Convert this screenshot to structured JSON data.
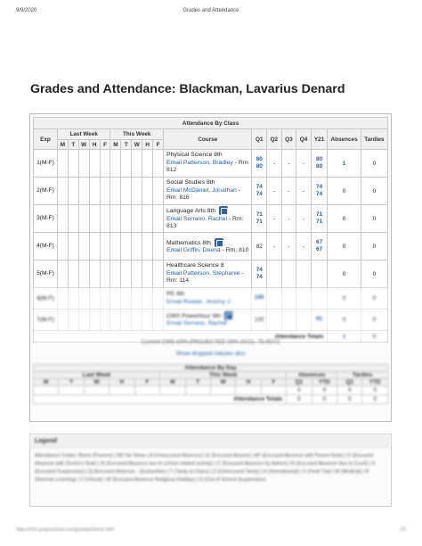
{
  "print_header": {
    "date": "9/9/2020",
    "title": "Grades and Attendance"
  },
  "page_title": "Grades and Attendance: Blackman, Lavarius Denard",
  "attendance_by_class": {
    "caption": "Attendance By Class",
    "headers": {
      "exp": "Exp",
      "last_week": "Last Week",
      "this_week": "This Week",
      "days": [
        "M",
        "T",
        "W",
        "H",
        "F"
      ],
      "course": "Course",
      "q1": "Q1",
      "q2": "Q2",
      "q3": "Q3",
      "q4": "Q4",
      "y21": "Y21",
      "absences": "Absences",
      "tardies": "Tardies"
    },
    "rows": [
      {
        "exp": "1(M-F)",
        "course": "Physical Science 8th",
        "teacher": "Email Patterson, Bradley",
        "room": " - Rm: 812",
        "q1": [
          "80",
          "80"
        ],
        "q2": "-",
        "q3": "-",
        "q4": "-",
        "y21": [
          "80",
          "80"
        ],
        "absences": "1",
        "tardies": "0"
      },
      {
        "exp": "2(M-F)",
        "course": "Social Studies 8th",
        "teacher": "Email McDaniel, Jonathan",
        "room": " - Rm: 816",
        "q1": [
          "74",
          "74"
        ],
        "q2": "-",
        "q3": "-",
        "q4": "-",
        "y21": [
          "74",
          "74"
        ],
        "absences": "0",
        "tardies": "0"
      },
      {
        "exp": "3(M-F)",
        "course": "Language Arts 8th",
        "teacher": "Email Serrano, Rachel",
        "room": " - Rm: 813",
        "q1": [
          "71",
          "71"
        ],
        "q2": "-",
        "q3": "-",
        "q4": "-",
        "y21": [
          "71",
          "71"
        ],
        "absences": "0",
        "tardies": "0"
      },
      {
        "exp": "4(M-F)",
        "course": "Mathematics 8th",
        "teacher": "Email Griffin, Deena",
        "room": " - Rm: 810",
        "q1": [
          "82"
        ],
        "q2": "-",
        "q3": "-",
        "q4": "-",
        "y21": [
          "67",
          "67"
        ],
        "absences": "0",
        "tardies": "0"
      },
      {
        "exp": "5(M-F)",
        "course": "Healthcare Science 8",
        "teacher": "Email Patterson, Stephanie",
        "room": " - Rm: 114",
        "q1": [
          "74",
          "74"
        ],
        "q2": "",
        "q3": "",
        "q4": "",
        "y21": [],
        "absences": "0",
        "tardies": "0"
      }
    ],
    "blurred_rows": [
      {
        "exp": "6(M-F)",
        "course": "PE 8th",
        "teacher": "Email Rowan, Jeremy J",
        "q1": "100",
        "absences": "0",
        "tardies": "0"
      },
      {
        "exp": "7(M-F)",
        "course": "CMS Powerhour 8th",
        "teacher": "Email Serrano, Rachel",
        "q1": "100",
        "y21": "91",
        "absences": "0",
        "tardies": "0"
      }
    ],
    "totals_label": "Attendance Totals",
    "totals_absences": "1",
    "totals_tardies": "0"
  },
  "gpa_line": "Current CMS GPA (PROJECTED GPA 2021): 75.857/1",
  "dropped_link": "Show dropped classes also",
  "attendance_by_day": {
    "caption": "Attendance By Day",
    "headers": {
      "last_week": "Last Week",
      "this_week": "This Week",
      "absences": "Absences",
      "tardies": "Tardies",
      "days": [
        "M",
        "T",
        "W",
        "H",
        "F"
      ],
      "q1": "Q1",
      "ytd": "YTD"
    },
    "values": [
      "0",
      "0",
      "0",
      "0"
    ],
    "totals_label": "Attendance Totals",
    "totals": [
      "0",
      "0",
      "0",
      "0"
    ]
  },
  "legend": {
    "title": "Legend",
    "body": "Attendance Codes: Blank (Present) | ND No Show | A (Unexcused Absence) | E (Excused Absent) | AP (Excused Absence with Parent Note) | D (Excused Absence with Doctor's Note) | B (Excused Absence due to school related activity) | C (Excused Absence by Admin) | N (Excused Absence due to Court) | S (Excused Suspension) | Q (Excused Absence - Quarantine) | T (Tardy to Class) | Z (Unexcused Tardy) | H (Homebound) | X (Field Trip) | M (Medical) | R (Remote Learning) | V (Virtual) | W (Excused Absence Religious Holiday) | O (Out of School Suspension)"
  },
  "footer": {
    "url": "https://cms.powerschool.com/guardian/home.html",
    "page": "1/2"
  }
}
